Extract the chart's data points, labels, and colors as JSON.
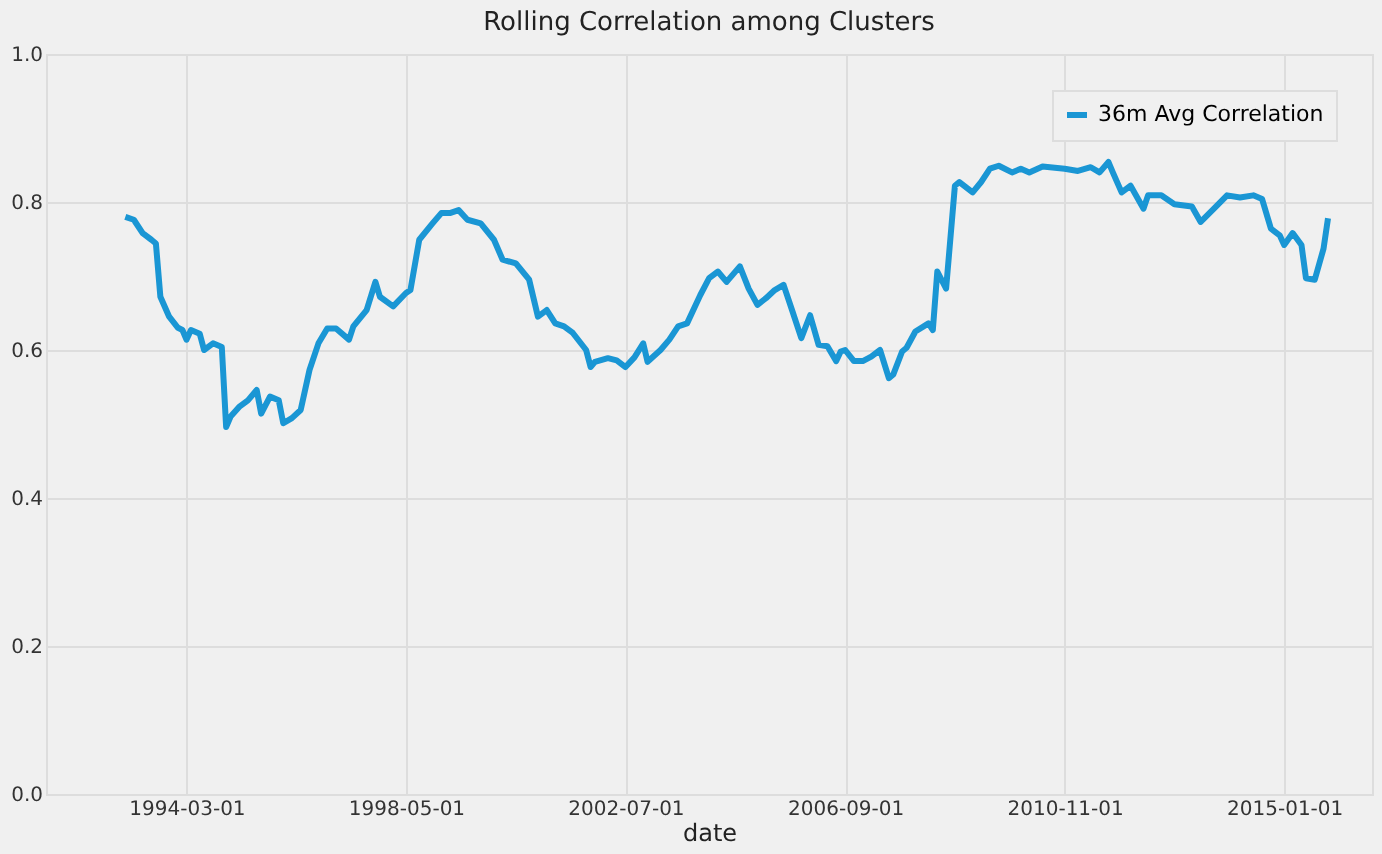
{
  "chart_data": {
    "type": "line",
    "title": "Rolling Correlation among Clusters",
    "xlabel": "date",
    "x": [
      "1993-01",
      "1993-03",
      "1993-05",
      "1993-07",
      "1993-08",
      "1993-09",
      "1993-11",
      "1994-01",
      "1994-02",
      "1994-03",
      "1994-04",
      "1994-06",
      "1994-07",
      "1994-09",
      "1994-11",
      "1994-12",
      "1995-01",
      "1995-03",
      "1995-05",
      "1995-07",
      "1995-08",
      "1995-10",
      "1995-12",
      "1996-01",
      "1996-03",
      "1996-05",
      "1996-07",
      "1996-09",
      "1996-11",
      "1997-01",
      "1997-04",
      "1997-05",
      "1997-08",
      "1997-10",
      "1997-11",
      "1998-02",
      "1998-05",
      "1998-06",
      "1998-08",
      "1998-11",
      "1999-01",
      "1999-03",
      "1999-05",
      "1999-07",
      "1999-10",
      "2000-01",
      "2000-03",
      "2000-06",
      "2000-09",
      "2000-11",
      "2001-01",
      "2001-03",
      "2001-05",
      "2001-07",
      "2001-10",
      "2001-11",
      "2001-12",
      "2002-03",
      "2002-05",
      "2002-07",
      "2002-09",
      "2002-11",
      "2002-12",
      "2003-03",
      "2003-05",
      "2003-07",
      "2003-09",
      "2003-12",
      "2004-02",
      "2004-04",
      "2004-06",
      "2004-09",
      "2004-11",
      "2005-01",
      "2005-03",
      "2005-05",
      "2005-07",
      "2005-09",
      "2005-11",
      "2006-01",
      "2006-03",
      "2006-05",
      "2006-07",
      "2006-08",
      "2006-09",
      "2006-11",
      "2007-01",
      "2007-03",
      "2007-05",
      "2007-07",
      "2007-08",
      "2007-10",
      "2007-11",
      "2008-01",
      "2008-04",
      "2008-05",
      "2008-06",
      "2008-08",
      "2008-10",
      "2008-11",
      "2009-02",
      "2009-04",
      "2009-06",
      "2009-08",
      "2009-11",
      "2010-01",
      "2010-03",
      "2010-06",
      "2010-11",
      "2011-02",
      "2011-05",
      "2011-07",
      "2011-09",
      "2011-10",
      "2011-12",
      "2012-02",
      "2012-05",
      "2012-06",
      "2012-09",
      "2012-12",
      "2013-04",
      "2013-06",
      "2013-09",
      "2013-12",
      "2014-03",
      "2014-06",
      "2014-08",
      "2014-10",
      "2014-12",
      "2015-01",
      "2015-03",
      "2015-05",
      "2015-06",
      "2015-08",
      "2015-10",
      "2015-11"
    ],
    "series": [
      {
        "name": "36m Avg Correlation",
        "color": "#1a96d4",
        "values": [
          0.78,
          0.776,
          0.758,
          0.749,
          0.744,
          0.672,
          0.645,
          0.63,
          0.627,
          0.614,
          0.627,
          0.622,
          0.6,
          0.609,
          0.604,
          0.496,
          0.51,
          0.523,
          0.532,
          0.546,
          0.514,
          0.537,
          0.532,
          0.501,
          0.508,
          0.519,
          0.573,
          0.609,
          0.629,
          0.629,
          0.614,
          0.632,
          0.654,
          0.692,
          0.672,
          0.659,
          0.677,
          0.681,
          0.749,
          0.771,
          0.785,
          0.785,
          0.789,
          0.776,
          0.771,
          0.749,
          0.722,
          0.717,
          0.695,
          0.645,
          0.654,
          0.636,
          0.632,
          0.623,
          0.6,
          0.577,
          0.584,
          0.589,
          0.586,
          0.577,
          0.59,
          0.609,
          0.584,
          0.6,
          0.614,
          0.632,
          0.636,
          0.674,
          0.697,
          0.706,
          0.692,
          0.713,
          0.683,
          0.661,
          0.67,
          0.681,
          0.688,
          0.652,
          0.616,
          0.647,
          0.607,
          0.605,
          0.585,
          0.598,
          0.6,
          0.585,
          0.585,
          0.591,
          0.6,
          0.562,
          0.567,
          0.598,
          0.603,
          0.625,
          0.636,
          0.627,
          0.706,
          0.683,
          0.822,
          0.827,
          0.813,
          0.827,
          0.845,
          0.849,
          0.84,
          0.845,
          0.84,
          0.848,
          0.845,
          0.842,
          0.847,
          0.84,
          0.854,
          0.84,
          0.813,
          0.822,
          0.791,
          0.809,
          0.809,
          0.797,
          0.794,
          0.773,
          0.791,
          0.809,
          0.806,
          0.809,
          0.804,
          0.764,
          0.755,
          0.742,
          0.758,
          0.742,
          0.697,
          0.695,
          0.737,
          0.778
        ]
      }
    ],
    "xlim": [
      "1991-07-01",
      "2016-09-01"
    ],
    "xticks": [
      "1994-03-01",
      "1998-05-01",
      "2002-07-01",
      "2006-09-01",
      "2010-11-01",
      "2015-01-01"
    ],
    "ylim": [
      0,
      1
    ],
    "yticks": [
      {
        "value": 0,
        "label": "0.0"
      },
      {
        "value": 0.2,
        "label": "0.2"
      },
      {
        "value": 0.4,
        "label": "0.4"
      },
      {
        "value": 0.6,
        "label": "0.6"
      },
      {
        "value": 0.8,
        "label": "0.8"
      },
      {
        "value": 1,
        "label": "1.0"
      }
    ],
    "grid": true,
    "legend": "top right",
    "line_style": "solid"
  }
}
